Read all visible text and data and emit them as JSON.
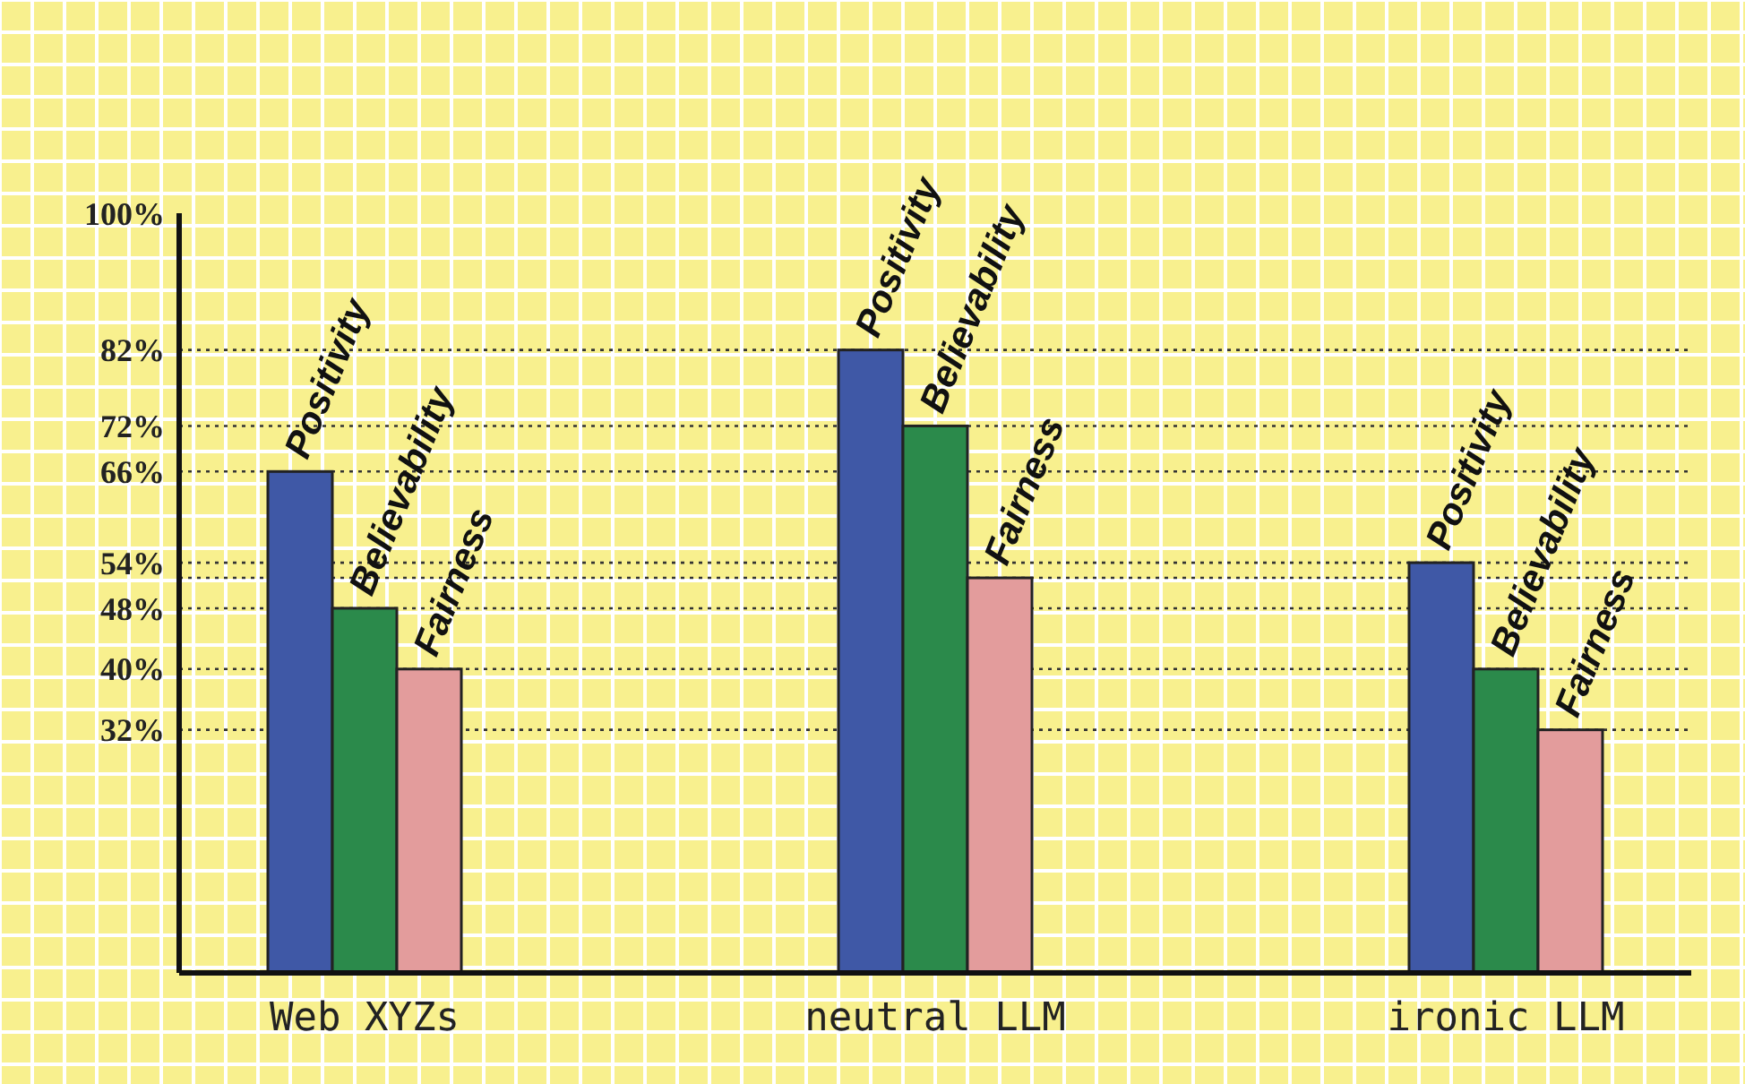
{
  "chart_data": {
    "type": "bar",
    "categories": [
      "Web XYZs",
      "neutral LLM",
      "ironic LLM"
    ],
    "series": [
      {
        "name": "Positivity",
        "color": "#3f58a6",
        "values": [
          66,
          82,
          54
        ]
      },
      {
        "name": "Believability",
        "color": "#2b8a4b",
        "values": [
          48,
          72,
          40
        ]
      },
      {
        "name": "Fairness",
        "color": "#e39c9c",
        "values": [
          40,
          52,
          32
        ]
      }
    ],
    "ylim": [
      0,
      100
    ],
    "yticks": [
      {
        "value": 32,
        "label": "32%"
      },
      {
        "value": 40,
        "label": "40%"
      },
      {
        "value": 48,
        "label": "48%"
      },
      {
        "value": 54,
        "label": "54%"
      },
      {
        "value": 66,
        "label": "66%"
      },
      {
        "value": 72,
        "label": "72%"
      },
      {
        "value": 82,
        "label": "82%"
      },
      {
        "value": 100,
        "label": "100%"
      }
    ],
    "ref_lines": [
      {
        "axis": "y",
        "value": 82,
        "line_style": "dotted"
      },
      {
        "axis": "y",
        "value": 72,
        "line_style": "dotted"
      },
      {
        "axis": "y",
        "value": 66,
        "line_style": "dotted"
      },
      {
        "axis": "y",
        "value": 54,
        "line_style": "dotted"
      },
      {
        "axis": "y",
        "value": 52,
        "line_style": "dotted"
      },
      {
        "axis": "y",
        "value": 48,
        "line_style": "dotted"
      },
      {
        "axis": "y",
        "value": 40,
        "line_style": "dotted"
      },
      {
        "axis": "y",
        "value": 32,
        "line_style": "dotted"
      }
    ],
    "grid": false
  }
}
